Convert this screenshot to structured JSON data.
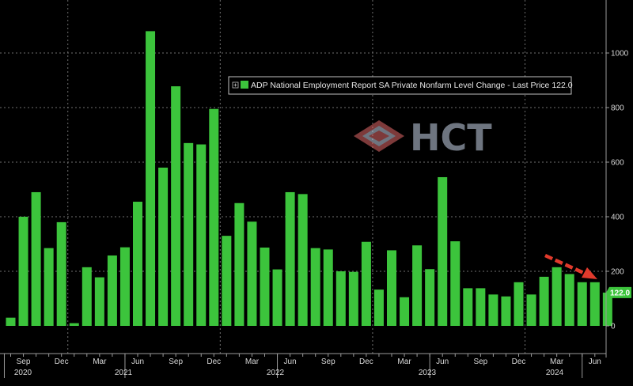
{
  "chart_data": {
    "type": "bar",
    "series": [
      {
        "values": [
          30,
          400,
          490,
          285,
          380,
          10,
          215,
          178,
          258,
          288,
          455,
          1080,
          580,
          878,
          670,
          665,
          795,
          330,
          450,
          382,
          287,
          207,
          490,
          483,
          285,
          280,
          200,
          198,
          308,
          133,
          277,
          105,
          295,
          208,
          545,
          310,
          138,
          138,
          115,
          108,
          160,
          115,
          180,
          215,
          190,
          160,
          160,
          122
        ],
        "color": "#3cc43c"
      }
    ],
    "month_labels": [
      "Sep",
      "Dec",
      "Mar",
      "Jun",
      "Sep",
      "Dec",
      "Mar",
      "Jun",
      "Sep",
      "Dec",
      "Mar",
      "Jun",
      "Sep",
      "Dec",
      "Mar",
      "Jun"
    ],
    "year_labels": [
      "2020",
      "2021",
      "2022",
      "2023",
      "2024"
    ],
    "yticks": [
      0,
      200,
      400,
      600,
      800,
      1000
    ],
    "ylim": [
      -100,
      1150
    ],
    "grid": true,
    "last_value_label": "122.0",
    "legend": {
      "text": "ADP National Employment Report SA Private Nonfarm Level Change - Last Price 122.0",
      "position": "top-right"
    },
    "annotation": "downward-trend-arrow",
    "colors": {
      "background": "#000000",
      "bar": "#3cc43c",
      "arrow": "#e03a2c",
      "last_label_bg": "#3cc43c"
    }
  },
  "watermark": {
    "text": "HCT",
    "icon": "hct-diamond-logo"
  }
}
